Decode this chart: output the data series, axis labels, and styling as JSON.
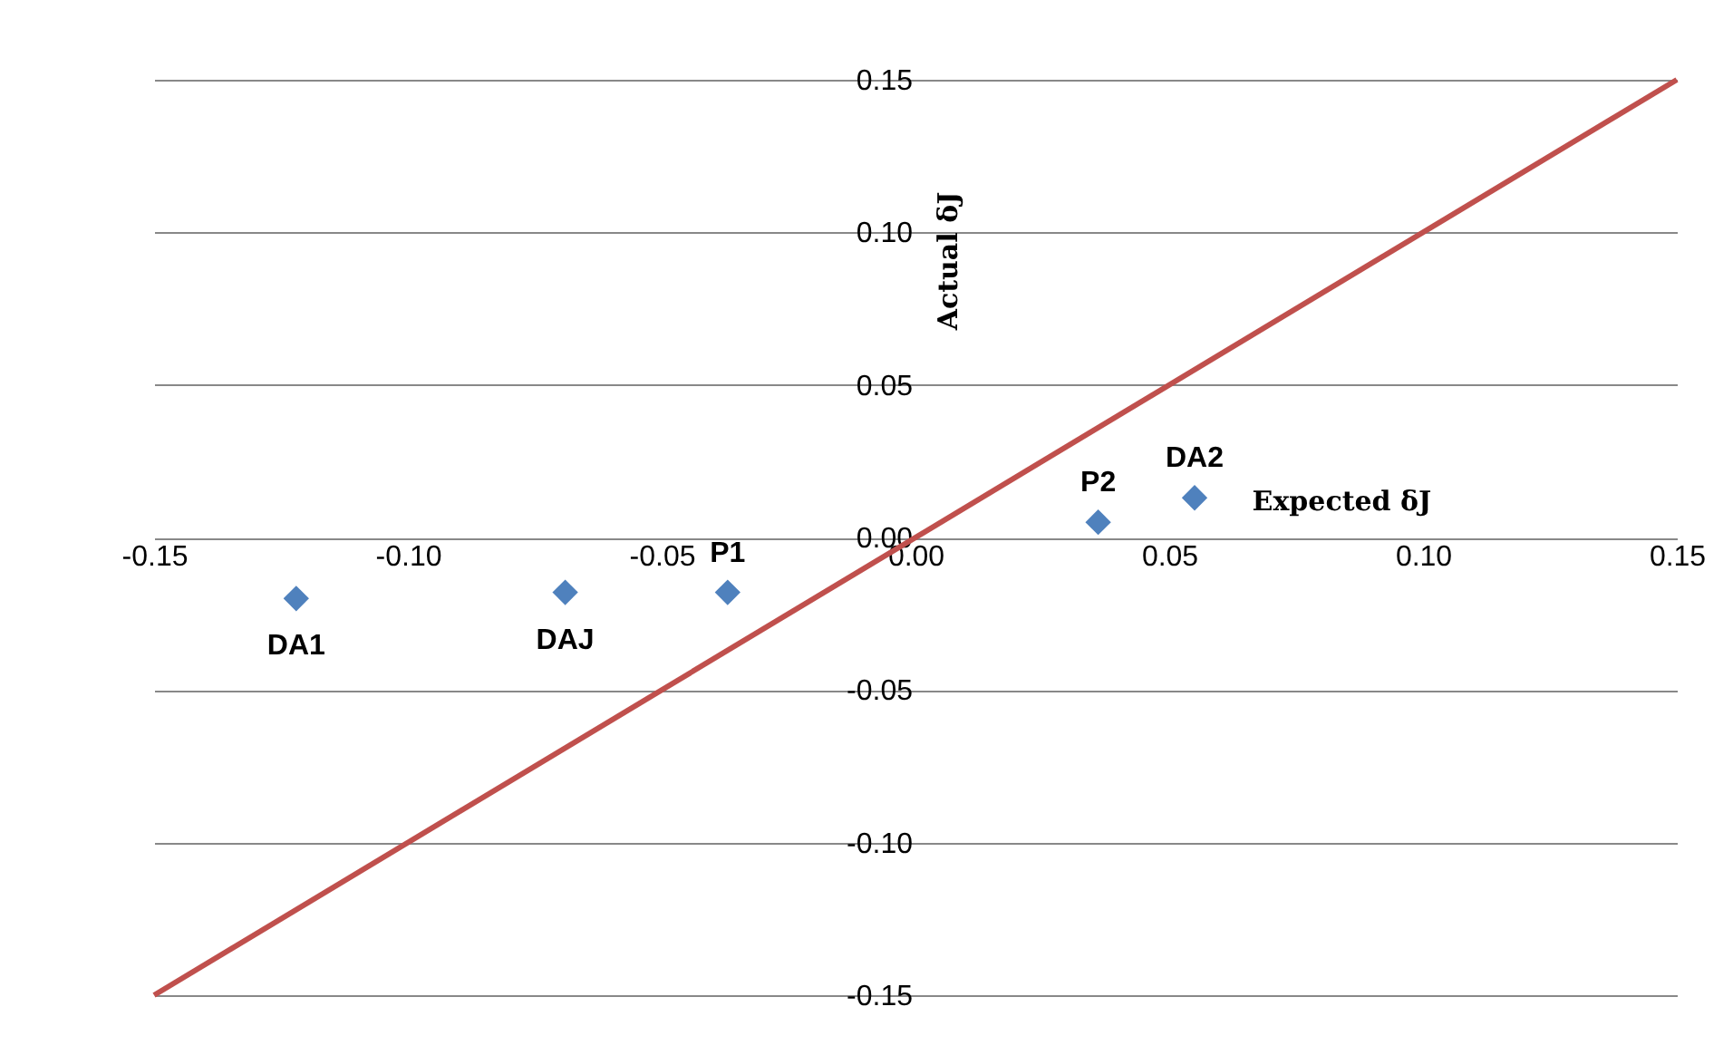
{
  "chart_data": {
    "type": "scatter",
    "xlabel": "Expected δJ",
    "ylabel": "Actual δJ",
    "xlim": [
      -0.15,
      0.15
    ],
    "ylim": [
      -0.15,
      0.15
    ],
    "xticks": [
      {
        "value": -0.15,
        "label": "-0.15"
      },
      {
        "value": -0.1,
        "label": "-0.10"
      },
      {
        "value": -0.05,
        "label": "-0.05"
      },
      {
        "value": 0,
        "label": "0.00"
      },
      {
        "value": 0.05,
        "label": "0.05"
      },
      {
        "value": 0.1,
        "label": "0.10"
      },
      {
        "value": 0.15,
        "label": "0.15"
      }
    ],
    "yticks": [
      {
        "value": -0.15,
        "label": "-0.15"
      },
      {
        "value": -0.1,
        "label": "-0.10"
      },
      {
        "value": -0.05,
        "label": "-0.05"
      },
      {
        "value": 0,
        "label": "0.00"
      },
      {
        "value": 0.05,
        "label": "0.05"
      },
      {
        "value": 0.1,
        "label": "0.10"
      },
      {
        "value": 0.15,
        "label": "0.15"
      }
    ],
    "grid": "y",
    "series": [
      {
        "marker": "diamond",
        "color": "#4f81bd",
        "x": [
          -0.122,
          -0.069,
          -0.037,
          0.036,
          0.055
        ],
        "values": [
          -0.02,
          -0.018,
          -0.018,
          0.005,
          0.013
        ]
      },
      {
        "type": "line",
        "color": "#c0504d",
        "x": [
          -0.15,
          0.15
        ],
        "values": [
          -0.15,
          0.15
        ]
      }
    ],
    "annotations": [
      {
        "text": "DA1",
        "x": -0.122,
        "y": -0.02
      },
      {
        "text": "DAJ",
        "x": -0.069,
        "y": -0.018
      },
      {
        "text": "P1",
        "x": -0.037,
        "y": -0.018
      },
      {
        "text": "P2",
        "x": 0.036,
        "y": 0.005
      },
      {
        "text": "DA2",
        "x": 0.055,
        "y": 0.013
      }
    ]
  }
}
